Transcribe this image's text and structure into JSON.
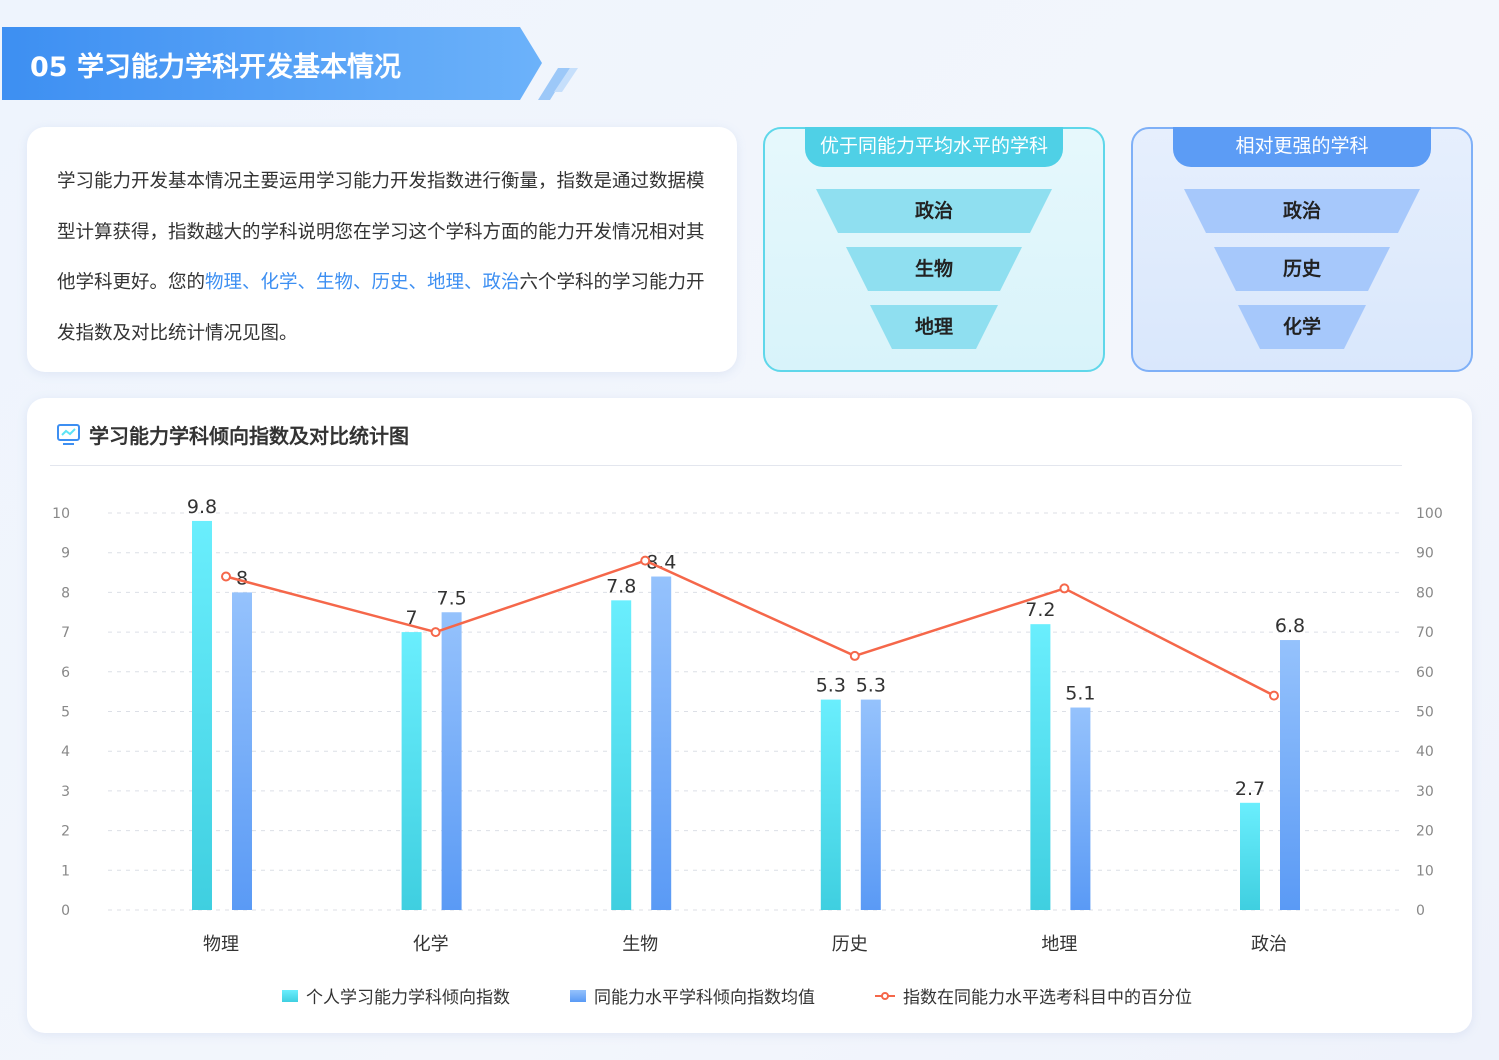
{
  "header": {
    "title": "05 学习能力学科开发基本情况"
  },
  "intro": {
    "text_before": "学习能力开发基本情况主要运用学习能力开发指数进行衡量，指数是通过数据模型计算获得，指数越大的学科说明您在学习这个学科方面的能力开发情况相对其他学科更好。您的",
    "highlight": "物理、化学、生物、历史、地理、政治",
    "text_after": "六个学科的学习能力开发指数及对比统计情况见图。"
  },
  "better_box": {
    "title": "优于同能力平均水平的学科",
    "items": [
      "政治",
      "生物",
      "地理"
    ],
    "color": "#4fd0e6"
  },
  "strong_box": {
    "title": "相对更强的学科",
    "items": [
      "政治",
      "历史",
      "化学"
    ],
    "color": "#5c9cf5"
  },
  "chart_title": "学习能力学科倾向指数及对比统计图",
  "chart_data": {
    "type": "bar+line",
    "categories": [
      "物理",
      "化学",
      "生物",
      "历史",
      "地理",
      "政治"
    ],
    "series": [
      {
        "name": "个人学习能力学科倾向指数",
        "type": "bar",
        "axis": "left",
        "values": [
          9.8,
          7,
          7.8,
          5.3,
          7.2,
          2.7
        ],
        "color": "#5de3f5"
      },
      {
        "name": "同能力水平学科倾向指数均值",
        "type": "bar",
        "axis": "left",
        "values": [
          8,
          7.5,
          8.4,
          5.3,
          5.1,
          6.8
        ],
        "color": "#7fb2fb"
      },
      {
        "name": "指数在同能力水平选考科目中的百分位",
        "type": "line",
        "axis": "right",
        "values": [
          84,
          70,
          88,
          64,
          81,
          54
        ],
        "color": "#f5674a"
      }
    ],
    "yleft": {
      "range": [
        0,
        10
      ],
      "ticks": [
        0,
        1,
        2,
        3,
        4,
        5,
        6,
        7,
        8,
        9,
        10
      ]
    },
    "yright": {
      "range": [
        0,
        100
      ],
      "ticks": [
        0,
        10,
        20,
        30,
        40,
        50,
        60,
        70,
        80,
        90,
        100
      ]
    },
    "grid": true,
    "legend": "bottom"
  }
}
